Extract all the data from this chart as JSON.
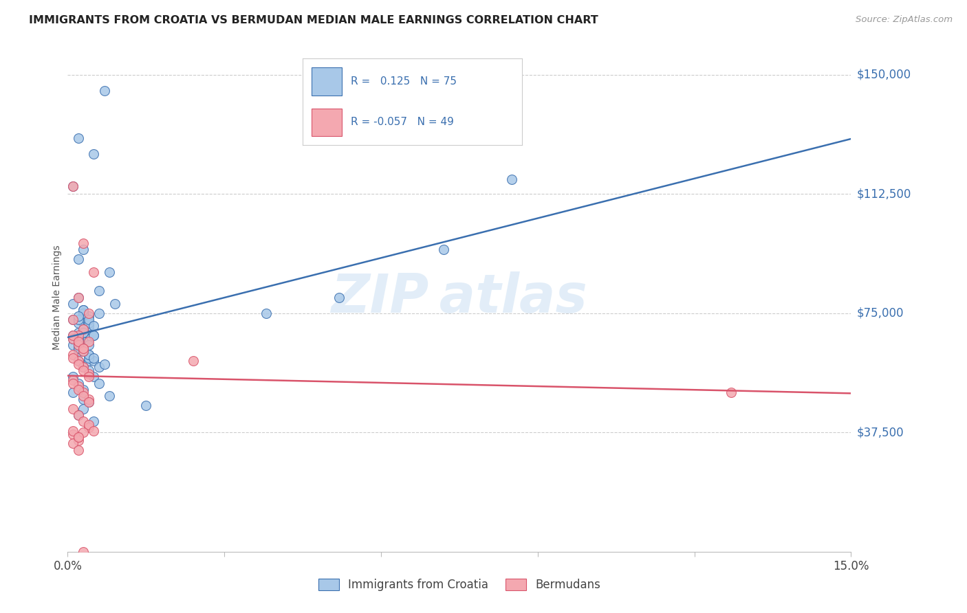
{
  "title": "IMMIGRANTS FROM CROATIA VS BERMUDAN MEDIAN MALE EARNINGS CORRELATION CHART",
  "source": "Source: ZipAtlas.com",
  "ylabel": "Median Male Earnings",
  "xmin": 0.0,
  "xmax": 0.15,
  "ymin": 0,
  "ymax": 160000,
  "yticks": [
    0,
    37500,
    75000,
    112500,
    150000
  ],
  "ytick_labels": [
    "",
    "$37,500",
    "$75,000",
    "$112,500",
    "$150,000"
  ],
  "xticks": [
    0.0,
    0.03,
    0.06,
    0.09,
    0.12,
    0.15
  ],
  "xtick_labels": [
    "0.0%",
    "",
    "",
    "",
    "",
    "15.0%"
  ],
  "blue_R": 0.125,
  "blue_N": 75,
  "pink_R": -0.057,
  "pink_N": 49,
  "blue_color": "#a8c8e8",
  "pink_color": "#f4a8b0",
  "blue_line_color": "#3a6faf",
  "pink_line_color": "#d9536a",
  "legend_label_blue": "Immigrants from Croatia",
  "legend_label_pink": "Bermudans",
  "blue_x": [
    0.004,
    0.002,
    0.007,
    0.005,
    0.001,
    0.003,
    0.008,
    0.006,
    0.009,
    0.002,
    0.003,
    0.004,
    0.005,
    0.001,
    0.002,
    0.003,
    0.001,
    0.002,
    0.004,
    0.003,
    0.005,
    0.006,
    0.003,
    0.004,
    0.002,
    0.001,
    0.003,
    0.002,
    0.004,
    0.005,
    0.006,
    0.003,
    0.002,
    0.004,
    0.003,
    0.001,
    0.002,
    0.003,
    0.004,
    0.002,
    0.001,
    0.003,
    0.002,
    0.004,
    0.003,
    0.005,
    0.002,
    0.003,
    0.004,
    0.002,
    0.006,
    0.004,
    0.005,
    0.003,
    0.002,
    0.004,
    0.003,
    0.005,
    0.007,
    0.004,
    0.001,
    0.002,
    0.003,
    0.008,
    0.004,
    0.003,
    0.002,
    0.005,
    0.001,
    0.003,
    0.085,
    0.072,
    0.038,
    0.052,
    0.015
  ],
  "blue_y": [
    67000,
    130000,
    145000,
    125000,
    115000,
    95000,
    88000,
    82000,
    78000,
    92000,
    75000,
    70000,
    68000,
    73000,
    69000,
    72000,
    65000,
    63000,
    60000,
    58000,
    55000,
    53000,
    76000,
    74000,
    72000,
    68000,
    66000,
    64000,
    62000,
    60000,
    58000,
    75000,
    73000,
    71000,
    69000,
    67000,
    65000,
    63000,
    61000,
    80000,
    78000,
    76000,
    74000,
    72000,
    70000,
    68000,
    66000,
    64000,
    62000,
    60000,
    75000,
    73000,
    71000,
    69000,
    67000,
    65000,
    63000,
    61000,
    59000,
    57000,
    55000,
    53000,
    51000,
    49000,
    47000,
    45000,
    43000,
    41000,
    50000,
    48000,
    117000,
    95000,
    75000,
    80000,
    46000
  ],
  "pink_x": [
    0.001,
    0.003,
    0.005,
    0.002,
    0.004,
    0.001,
    0.003,
    0.002,
    0.004,
    0.003,
    0.001,
    0.002,
    0.003,
    0.004,
    0.001,
    0.002,
    0.003,
    0.004,
    0.001,
    0.002,
    0.003,
    0.001,
    0.002,
    0.003,
    0.004,
    0.001,
    0.002,
    0.003,
    0.004,
    0.001,
    0.002,
    0.003,
    0.004,
    0.001,
    0.002,
    0.003,
    0.004,
    0.005,
    0.001,
    0.002,
    0.003,
    0.024,
    0.002,
    0.001,
    0.003,
    0.001,
    0.002,
    0.127,
    0.002
  ],
  "pink_y": [
    115000,
    97000,
    88000,
    80000,
    75000,
    73000,
    70000,
    68000,
    66000,
    64000,
    62000,
    60000,
    58000,
    56000,
    54000,
    52000,
    50000,
    48000,
    67000,
    65000,
    63000,
    61000,
    59000,
    57000,
    55000,
    53000,
    51000,
    49000,
    47000,
    45000,
    43000,
    41000,
    39000,
    68000,
    66000,
    64000,
    40000,
    38000,
    37000,
    35000,
    0,
    60000,
    36000,
    34000,
    37500,
    38000,
    36000,
    50000,
    32000
  ]
}
